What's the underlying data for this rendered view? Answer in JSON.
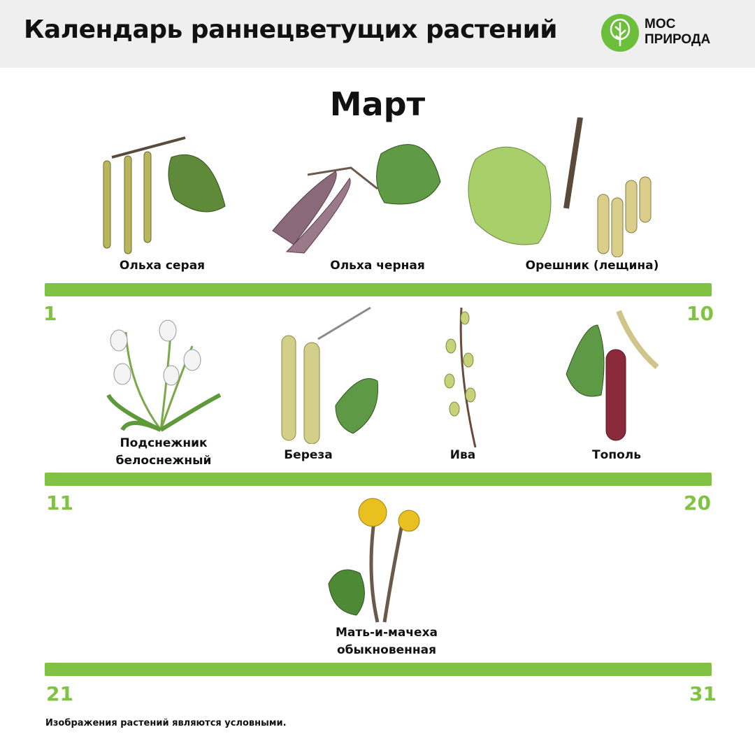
{
  "header": {
    "title": "Календарь раннецветущих растений",
    "logo": {
      "line1": "МОС",
      "line2": "ПРИРОДА",
      "icon": "tree-icon",
      "color": "#6cbf3a"
    }
  },
  "month": "Март",
  "accent_color": "#80c342",
  "periods": [
    {
      "start": "1",
      "end": "10",
      "plants": [
        "Ольха серая",
        "Ольха черная",
        "Орешник (лещина)"
      ]
    },
    {
      "start": "11",
      "end": "20",
      "plants": [
        "Подснежник белоснежный",
        "Береза",
        "Ива",
        "Тополь"
      ]
    },
    {
      "start": "21",
      "end": "31",
      "plants": [
        "Мать-и-мачеха обыкновенная"
      ]
    }
  ],
  "labels": {
    "p0": "Ольха серая",
    "p1": "Ольха черная",
    "p2": "Орешник (лещина)",
    "p3a": "Подснежник",
    "p3b": "белоснежный",
    "p4": "Береза",
    "p5": "Ива",
    "p6": "Тополь",
    "p7a": "Мать-и-мачеха",
    "p7b": "обыкновенная"
  },
  "footnote": "Изображения растений являются условными."
}
